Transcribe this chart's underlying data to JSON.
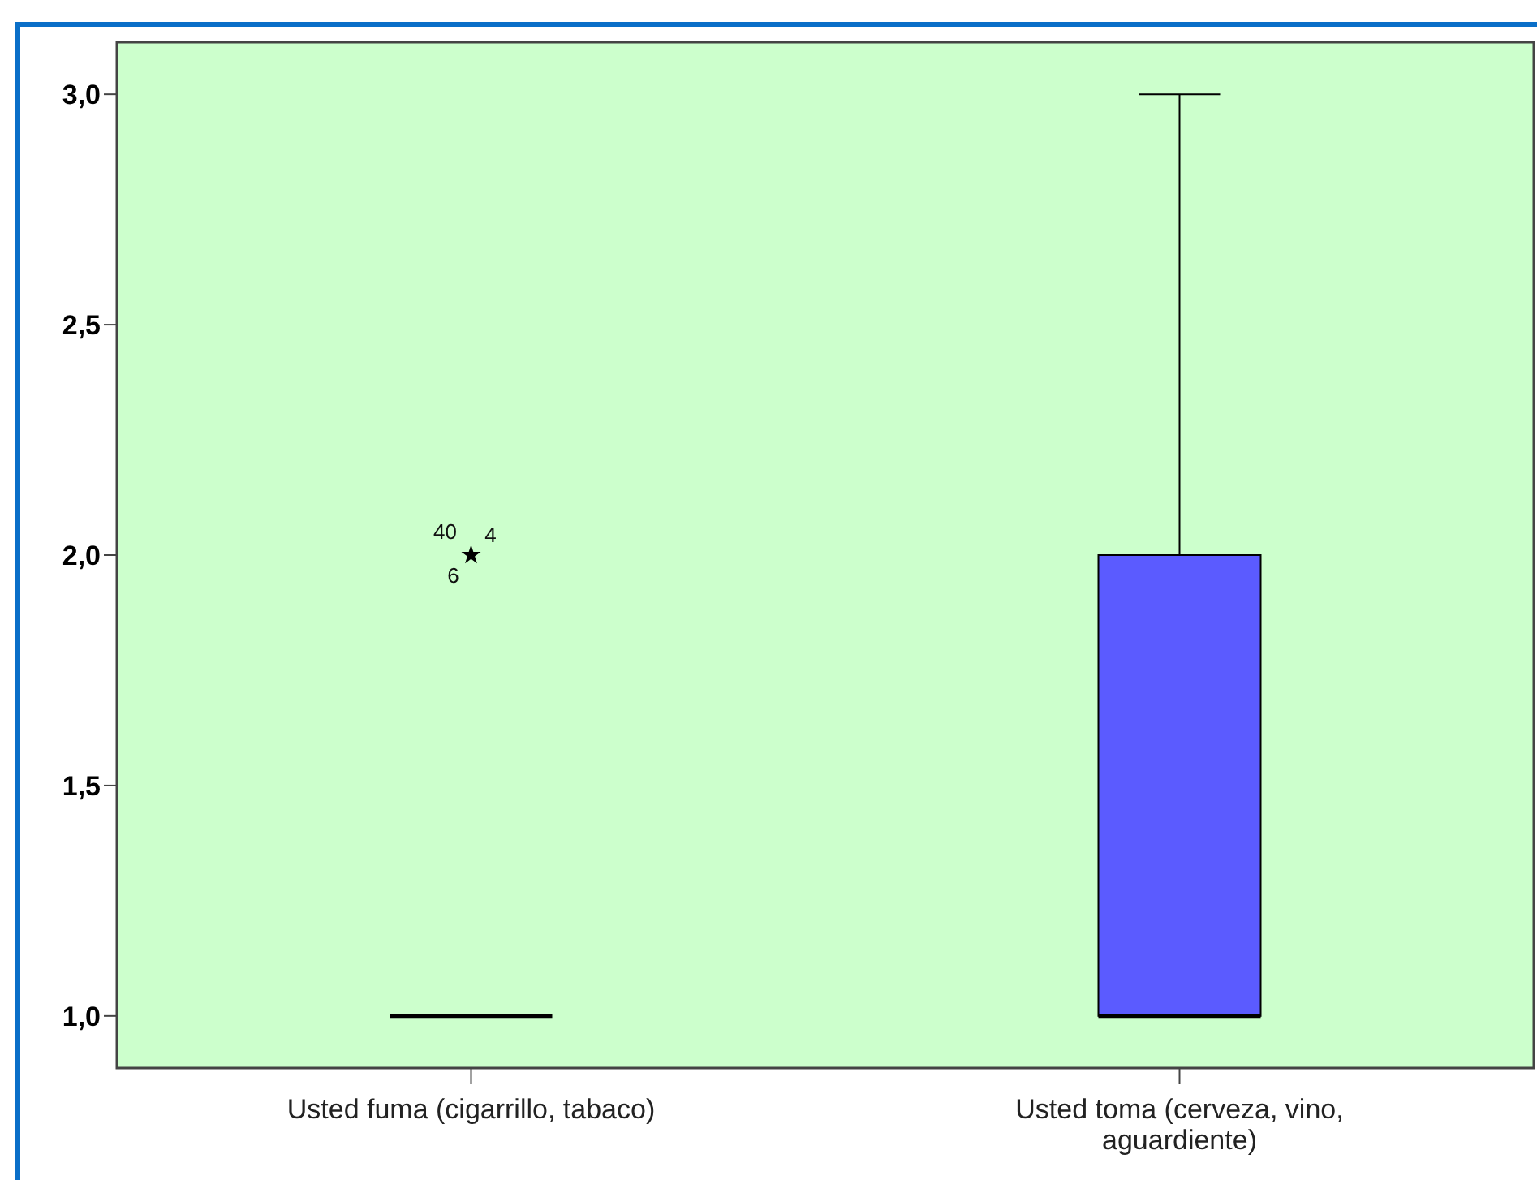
{
  "chart_data": {
    "type": "box",
    "categories": [
      "Usted fuma (cigarrillo, tabaco)",
      "Usted toma (cerveza, vino, aguardiente)"
    ],
    "colors": [
      "#000000",
      "#5b5bff"
    ],
    "boxes": [
      {
        "low": 1,
        "q1": 1,
        "median": 1,
        "q3": 1,
        "high": 1,
        "outliers": [
          2
        ]
      },
      {
        "low": 1,
        "q1": 1,
        "median": 1,
        "q3": 2,
        "high": 3
      }
    ],
    "marker": "star",
    "ylim": [
      0.887,
      3.113
    ],
    "yticks": [
      {
        "value": 1,
        "label": "1,0"
      },
      {
        "value": 1.5,
        "label": "1,5"
      },
      {
        "value": 2,
        "label": "2,0"
      },
      {
        "value": 2.5,
        "label": "2,5"
      },
      {
        "value": 3,
        "label": "3,0"
      }
    ],
    "annotations": [
      "40",
      "4",
      "6"
    ],
    "grid": false
  }
}
